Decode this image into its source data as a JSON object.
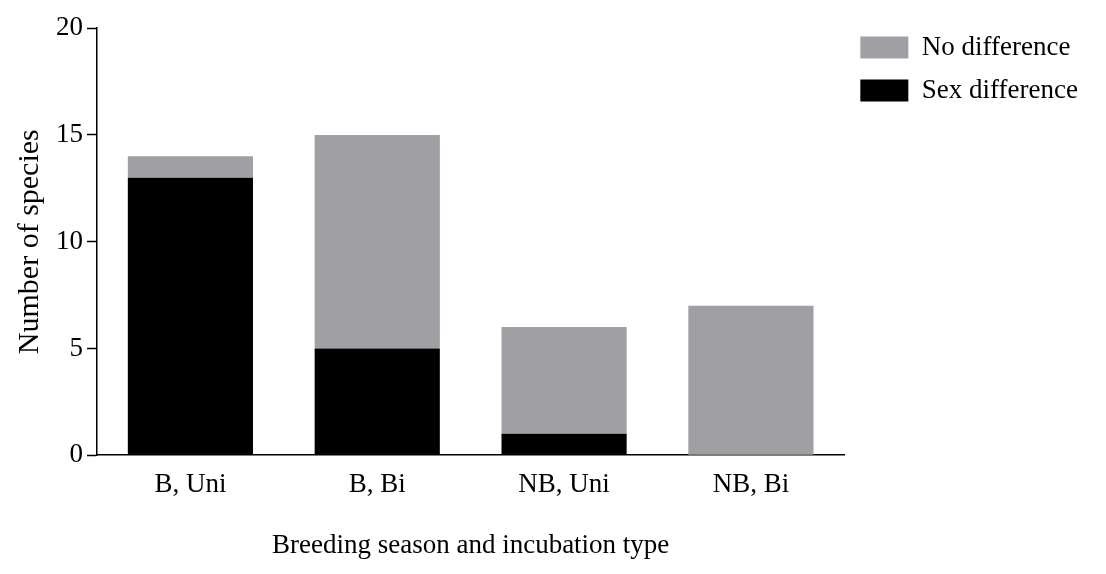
{
  "chart_data": {
    "type": "bar",
    "stacked": true,
    "xlabel": "Breeding season and incubation type",
    "ylabel": "Number of species",
    "categories": [
      "B, Uni",
      "B, Bi",
      "NB, Uni",
      "NB, Bi"
    ],
    "series": [
      {
        "name": "Sex difference",
        "color": "#000000",
        "values": [
          13,
          5,
          1,
          0
        ]
      },
      {
        "name": "No difference",
        "color": "#a0a0a4",
        "values": [
          1,
          10,
          5,
          7
        ]
      }
    ],
    "ylim": [
      0,
      20
    ],
    "yticks": [
      0,
      5,
      10,
      15,
      20
    ],
    "legend": "top right"
  }
}
